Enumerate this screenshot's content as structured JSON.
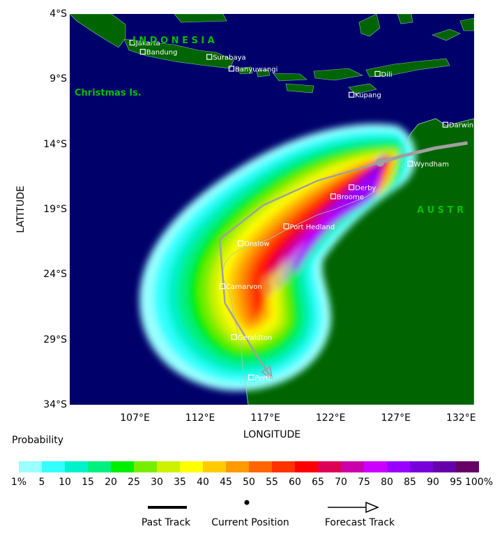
{
  "map": {
    "latitude_label": "LATITUDE",
    "longitude_label": "LONGITUDE",
    "lat_ticks": [
      "4°S",
      "9°S",
      "14°S",
      "19°S",
      "24°S",
      "29°S",
      "34°S"
    ],
    "lon_ticks": [
      "107°E",
      "112°E",
      "117°E",
      "122°E",
      "127°E",
      "132°E"
    ],
    "region_labels": {
      "indonesia": "I N D O N E S I A",
      "christmas_island": "Christmas Is.",
      "australia": "A U S T R"
    },
    "cities": [
      {
        "name": "Jakarta",
        "lon": 106.8,
        "lat": -6.2
      },
      {
        "name": "Bandung",
        "lon": 107.6,
        "lat": -6.9
      },
      {
        "name": "Surabaya",
        "lon": 112.7,
        "lat": -7.3
      },
      {
        "name": "Banyuwangi",
        "lon": 114.4,
        "lat": -8.2
      },
      {
        "name": "Dili",
        "lon": 125.6,
        "lat": -8.6
      },
      {
        "name": "Kupang",
        "lon": 123.6,
        "lat": -10.2
      },
      {
        "name": "Darwin",
        "lon": 130.8,
        "lat": -12.5
      },
      {
        "name": "Wyndham",
        "lon": 128.1,
        "lat": -15.5
      },
      {
        "name": "Derby",
        "lon": 123.6,
        "lat": -17.3
      },
      {
        "name": "Broome",
        "lon": 122.2,
        "lat": -18.0
      },
      {
        "name": "Port Hedland",
        "lon": 118.6,
        "lat": -20.3
      },
      {
        "name": "Onslow",
        "lon": 115.1,
        "lat": -21.6
      },
      {
        "name": "Carnarvon",
        "lon": 113.7,
        "lat": -24.9
      },
      {
        "name": "Geraldton",
        "lon": 114.6,
        "lat": -28.8
      },
      {
        "name": "Perth",
        "lon": 115.9,
        "lat": -31.9
      }
    ],
    "past_track": [
      [
        132.5,
        -13.9
      ],
      [
        130.0,
        -14.3
      ],
      [
        127.5,
        -14.9
      ],
      [
        125.8,
        -15.4
      ]
    ],
    "current_position": [
      125.8,
      -15.4
    ],
    "forecast_track": [
      [
        125.8,
        -15.4
      ],
      [
        121.0,
        -16.8
      ],
      [
        116.8,
        -18.7
      ],
      [
        113.5,
        -21.3
      ],
      [
        113.9,
        -26.2
      ],
      [
        116.2,
        -30.0
      ],
      [
        117.5,
        -32.0
      ]
    ],
    "colors": {
      "ocean": "#00006a",
      "land": "#006400",
      "land_label": "#00c000",
      "track": "#a0a0a0"
    }
  },
  "legend": {
    "title": "Probability",
    "labels": [
      "1%",
      "5",
      "10",
      "15",
      "20",
      "25",
      "30",
      "35",
      "40",
      "45",
      "50",
      "55",
      "60",
      "65",
      "70",
      "75",
      "80",
      "85",
      "90",
      "95",
      "100%"
    ],
    "colors": [
      "#99ffff",
      "#33ffff",
      "#00f2cc",
      "#00f080",
      "#00ee00",
      "#77ee00",
      "#ccf200",
      "#ffff00",
      "#ffcc00",
      "#ff9900",
      "#ff6600",
      "#ff3300",
      "#ff0000",
      "#dd0055",
      "#cc00aa",
      "#cc00ff",
      "#9900ff",
      "#7700dd",
      "#6600aa",
      "#660066"
    ],
    "track_key": {
      "past": "Past Track",
      "current": "Current Position",
      "forecast": "Forecast Track"
    }
  }
}
